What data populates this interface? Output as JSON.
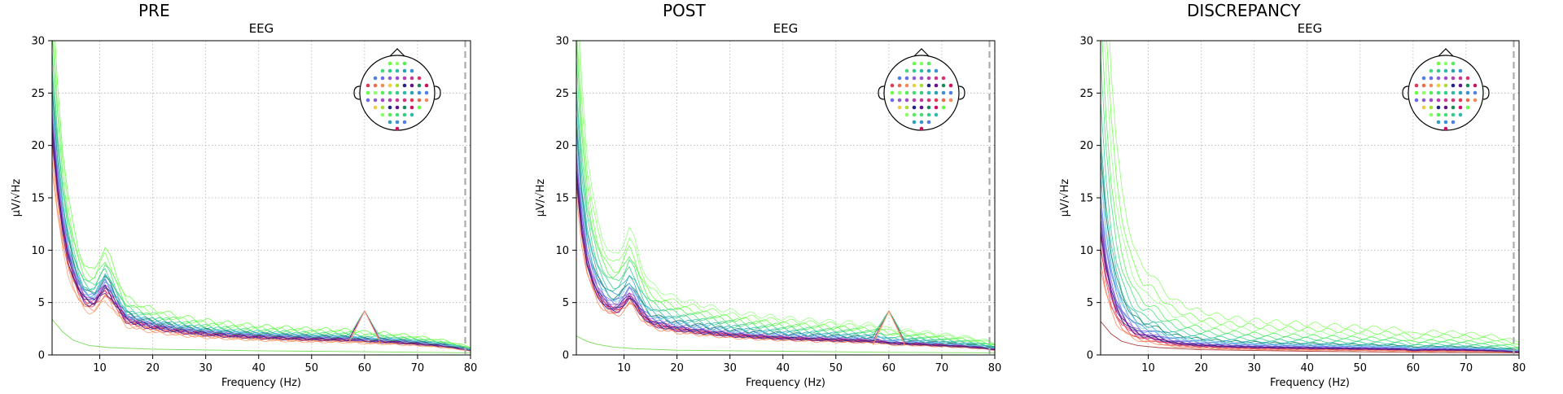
{
  "chart_data": [
    {
      "type": "line",
      "figure_title": "PRE",
      "title": "EEG",
      "xlabel": "Frequency (Hz)",
      "ylabel": "µV/√Hz",
      "xlim": [
        1,
        80
      ],
      "ylim": [
        0,
        30
      ],
      "xticks": [
        10,
        20,
        30,
        40,
        50,
        60,
        70,
        80
      ],
      "yticks": [
        0,
        5,
        10,
        15,
        20,
        25,
        30
      ],
      "grid": true,
      "cutoff_line_hz": 79,
      "sensor_inset": "top-right",
      "profile": {
        "x": [
          1,
          2,
          3,
          4,
          5,
          6,
          7,
          8,
          9,
          10,
          11,
          12,
          13,
          14,
          15,
          17,
          20,
          25,
          30,
          35,
          40,
          45,
          50,
          55,
          58,
          60,
          62,
          65,
          70,
          75,
          78,
          80
        ],
        "mean": [
          24,
          18,
          13.5,
          10.5,
          8.5,
          7,
          6,
          5.6,
          5.6,
          6.4,
          7.1,
          6.4,
          5.4,
          4.6,
          3.8,
          3.4,
          3.0,
          2.55,
          2.25,
          2.05,
          1.9,
          1.8,
          1.7,
          1.65,
          1.6,
          1.5,
          1.45,
          1.4,
          1.2,
          0.95,
          0.7,
          0.5
        ]
      },
      "series": [
        {
          "color": "#66ff44",
          "scale": 1.45
        },
        {
          "color": "#88ff66",
          "scale": 1.35
        },
        {
          "color": "#55ee55",
          "scale": 1.28
        },
        {
          "color": "#44dd77",
          "scale": 1.2
        },
        {
          "color": "#33cc88",
          "scale": 1.15
        },
        {
          "color": "#2fbbaa",
          "scale": 1.1
        },
        {
          "color": "#2aa3b8",
          "scale": 1.06
        },
        {
          "color": "#3b8fd6",
          "scale": 1.03
        },
        {
          "color": "#4f7fe8",
          "scale": 1.0
        },
        {
          "color": "#6a6ee6",
          "scale": 0.98
        },
        {
          "color": "#8a5fd8",
          "scale": 0.96
        },
        {
          "color": "#a14cc8",
          "scale": 0.94
        },
        {
          "color": "#b73fae",
          "scale": 0.92
        },
        {
          "color": "#c83a8f",
          "scale": 0.9
        },
        {
          "color": "#d83372",
          "scale": 0.88
        },
        {
          "color": "#e23a55",
          "scale": 0.86
        },
        {
          "color": "#ee6b4a",
          "scale": 0.82
        },
        {
          "color": "#f58a5a",
          "scale": 0.78
        },
        {
          "color": "#f7a070",
          "scale": 0.74
        },
        {
          "color": "#3a3aa8",
          "scale": 0.92
        },
        {
          "color": "#222288",
          "scale": 0.9
        },
        {
          "color": "#661188",
          "scale": 0.86
        },
        {
          "color": "#1a8a5a",
          "scale": 1.05
        },
        {
          "color": "#7ad7f0",
          "scale": 1.02
        }
      ],
      "spike": {
        "x": 60,
        "value": 4.2,
        "color": "#f59a6a"
      },
      "low_trace": {
        "color": "#77dd55",
        "x": [
          1,
          3,
          5,
          8,
          12,
          20,
          40,
          60,
          80
        ],
        "y": [
          3.4,
          2.2,
          1.4,
          0.9,
          0.7,
          0.55,
          0.4,
          0.3,
          0.2
        ]
      }
    },
    {
      "type": "line",
      "figure_title": "POST",
      "title": "EEG",
      "xlabel": "Frequency (Hz)",
      "ylabel": "µV/√Hz",
      "xlim": [
        1,
        80
      ],
      "ylim": [
        0,
        30
      ],
      "xticks": [
        10,
        20,
        30,
        40,
        50,
        60,
        70,
        80
      ],
      "yticks": [
        0,
        5,
        10,
        15,
        20,
        25,
        30
      ],
      "grid": true,
      "cutoff_line_hz": 79,
      "sensor_inset": "top-right",
      "profile": {
        "x": [
          1,
          2,
          3,
          4,
          5,
          6,
          7,
          8,
          9,
          10,
          11,
          12,
          13,
          14,
          15,
          17,
          20,
          25,
          30,
          35,
          40,
          45,
          50,
          55,
          58,
          60,
          62,
          65,
          70,
          75,
          78,
          80
        ],
        "mean": [
          20,
          14,
          10.2,
          8.2,
          6.8,
          5.9,
          5.3,
          5.0,
          5.1,
          5.7,
          6.4,
          5.8,
          4.8,
          4.1,
          3.6,
          3.2,
          2.85,
          2.5,
          2.2,
          2.0,
          1.85,
          1.75,
          1.65,
          1.55,
          1.5,
          1.3,
          1.25,
          1.2,
          1.05,
          0.9,
          0.75,
          0.6
        ]
      },
      "series": [
        {
          "color": "#88ff66",
          "scale": 1.75
        },
        {
          "color": "#66ff44",
          "scale": 1.6
        },
        {
          "color": "#55ee55",
          "scale": 1.5
        },
        {
          "color": "#44dd77",
          "scale": 1.4
        },
        {
          "color": "#33cc88",
          "scale": 1.3
        },
        {
          "color": "#2fbbaa",
          "scale": 1.22
        },
        {
          "color": "#2aa3b8",
          "scale": 1.15
        },
        {
          "color": "#3b8fd6",
          "scale": 1.08
        },
        {
          "color": "#4f7fe8",
          "scale": 1.02
        },
        {
          "color": "#6a6ee6",
          "scale": 0.98
        },
        {
          "color": "#8a5fd8",
          "scale": 0.95
        },
        {
          "color": "#a14cc8",
          "scale": 0.92
        },
        {
          "color": "#b73fae",
          "scale": 0.9
        },
        {
          "color": "#c83a8f",
          "scale": 0.88
        },
        {
          "color": "#d83372",
          "scale": 0.86
        },
        {
          "color": "#e23a55",
          "scale": 0.84
        },
        {
          "color": "#ee6b4a",
          "scale": 0.8
        },
        {
          "color": "#f58a5a",
          "scale": 0.76
        },
        {
          "color": "#3a3aa8",
          "scale": 0.9
        },
        {
          "color": "#222288",
          "scale": 0.86
        },
        {
          "color": "#661188",
          "scale": 0.84
        },
        {
          "color": "#1a8a5a",
          "scale": 1.1
        },
        {
          "color": "#99ff88",
          "scale": 1.9
        },
        {
          "color": "#7ad7f0",
          "scale": 1.05
        }
      ],
      "spike": {
        "x": 60,
        "value": 4.2,
        "color": "#f59a6a"
      },
      "low_trace": {
        "color": "#77dd55",
        "x": [
          1,
          3,
          5,
          8,
          12,
          20,
          40,
          60,
          80
        ],
        "y": [
          1.8,
          1.3,
          1.0,
          0.75,
          0.6,
          0.45,
          0.35,
          0.25,
          0.2
        ]
      }
    },
    {
      "type": "line",
      "figure_title": "DISCREPANCY",
      "title": "EEG",
      "xlabel": "Frequency (Hz)",
      "ylabel": "µV/√Hz",
      "xlim": [
        1,
        80
      ],
      "ylim": [
        0,
        30
      ],
      "xticks": [
        10,
        20,
        30,
        40,
        50,
        60,
        70,
        80
      ],
      "yticks": [
        0,
        5,
        10,
        15,
        20,
        25,
        30
      ],
      "grid": true,
      "cutoff_line_hz": 79,
      "sensor_inset": "top-right",
      "profile": {
        "x": [
          1,
          2,
          3,
          4,
          5,
          6,
          7,
          8,
          9,
          10,
          11,
          12,
          13,
          14,
          15,
          17,
          20,
          25,
          30,
          35,
          40,
          45,
          50,
          55,
          58,
          60,
          62,
          65,
          70,
          75,
          78,
          80
        ],
        "mean": [
          15,
          10.5,
          7.5,
          5.6,
          4.4,
          3.6,
          3.0,
          2.6,
          2.3,
          2.2,
          2.1,
          1.9,
          1.7,
          1.55,
          1.45,
          1.3,
          1.15,
          1.0,
          0.92,
          0.86,
          0.82,
          0.78,
          0.74,
          0.7,
          0.68,
          0.55,
          0.6,
          0.62,
          0.58,
          0.5,
          0.42,
          0.35
        ]
      },
      "series": [
        {
          "color": "#88ff66",
          "scale": 3.6
        },
        {
          "color": "#66ff44",
          "scale": 3.0
        },
        {
          "color": "#99ff88",
          "scale": 2.6
        },
        {
          "color": "#55ee55",
          "scale": 2.2
        },
        {
          "color": "#44dd77",
          "scale": 1.9
        },
        {
          "color": "#33cc88",
          "scale": 1.6
        },
        {
          "color": "#2fbbaa",
          "scale": 1.4
        },
        {
          "color": "#2aa3b8",
          "scale": 1.25
        },
        {
          "color": "#3b8fd6",
          "scale": 1.12
        },
        {
          "color": "#4f7fe8",
          "scale": 1.02
        },
        {
          "color": "#6a6ee6",
          "scale": 0.95
        },
        {
          "color": "#8a5fd8",
          "scale": 0.9
        },
        {
          "color": "#a14cc8",
          "scale": 0.85
        },
        {
          "color": "#b73fae",
          "scale": 0.8
        },
        {
          "color": "#c83a8f",
          "scale": 0.75
        },
        {
          "color": "#d83372",
          "scale": 0.7
        },
        {
          "color": "#e23a55",
          "scale": 0.66
        },
        {
          "color": "#ee6b4a",
          "scale": 0.6
        },
        {
          "color": "#f58a5a",
          "scale": 0.55
        },
        {
          "color": "#3a3aa8",
          "scale": 0.85
        },
        {
          "color": "#222288",
          "scale": 0.8
        },
        {
          "color": "#661188",
          "scale": 0.78
        },
        {
          "color": "#1a8a5a",
          "scale": 1.3
        },
        {
          "color": "#7ad7f0",
          "scale": 1.15
        }
      ],
      "spike": null,
      "low_trace": {
        "color": "#aa4444",
        "x": [
          1,
          3,
          5,
          8,
          12,
          20,
          40,
          60,
          80
        ],
        "y": [
          3.2,
          2.0,
          1.3,
          0.9,
          0.7,
          0.5,
          0.35,
          0.25,
          0.2
        ]
      }
    }
  ],
  "sensor_colors": [
    "#66ff44",
    "#88ff66",
    "#55ee55",
    "#44dd77",
    "#33cc88",
    "#2fbbaa",
    "#2aa3b8",
    "#3b8fd6",
    "#4f7fe8",
    "#6a6ee6",
    "#8a5fd8",
    "#a14cc8",
    "#b73fae",
    "#c83a8f",
    "#d83372",
    "#e23a55",
    "#ee6b4a",
    "#f58a5a",
    "#eecc44",
    "#aadd33",
    "#222288",
    "#661188",
    "#1a8a5a",
    "#cc1166"
  ]
}
